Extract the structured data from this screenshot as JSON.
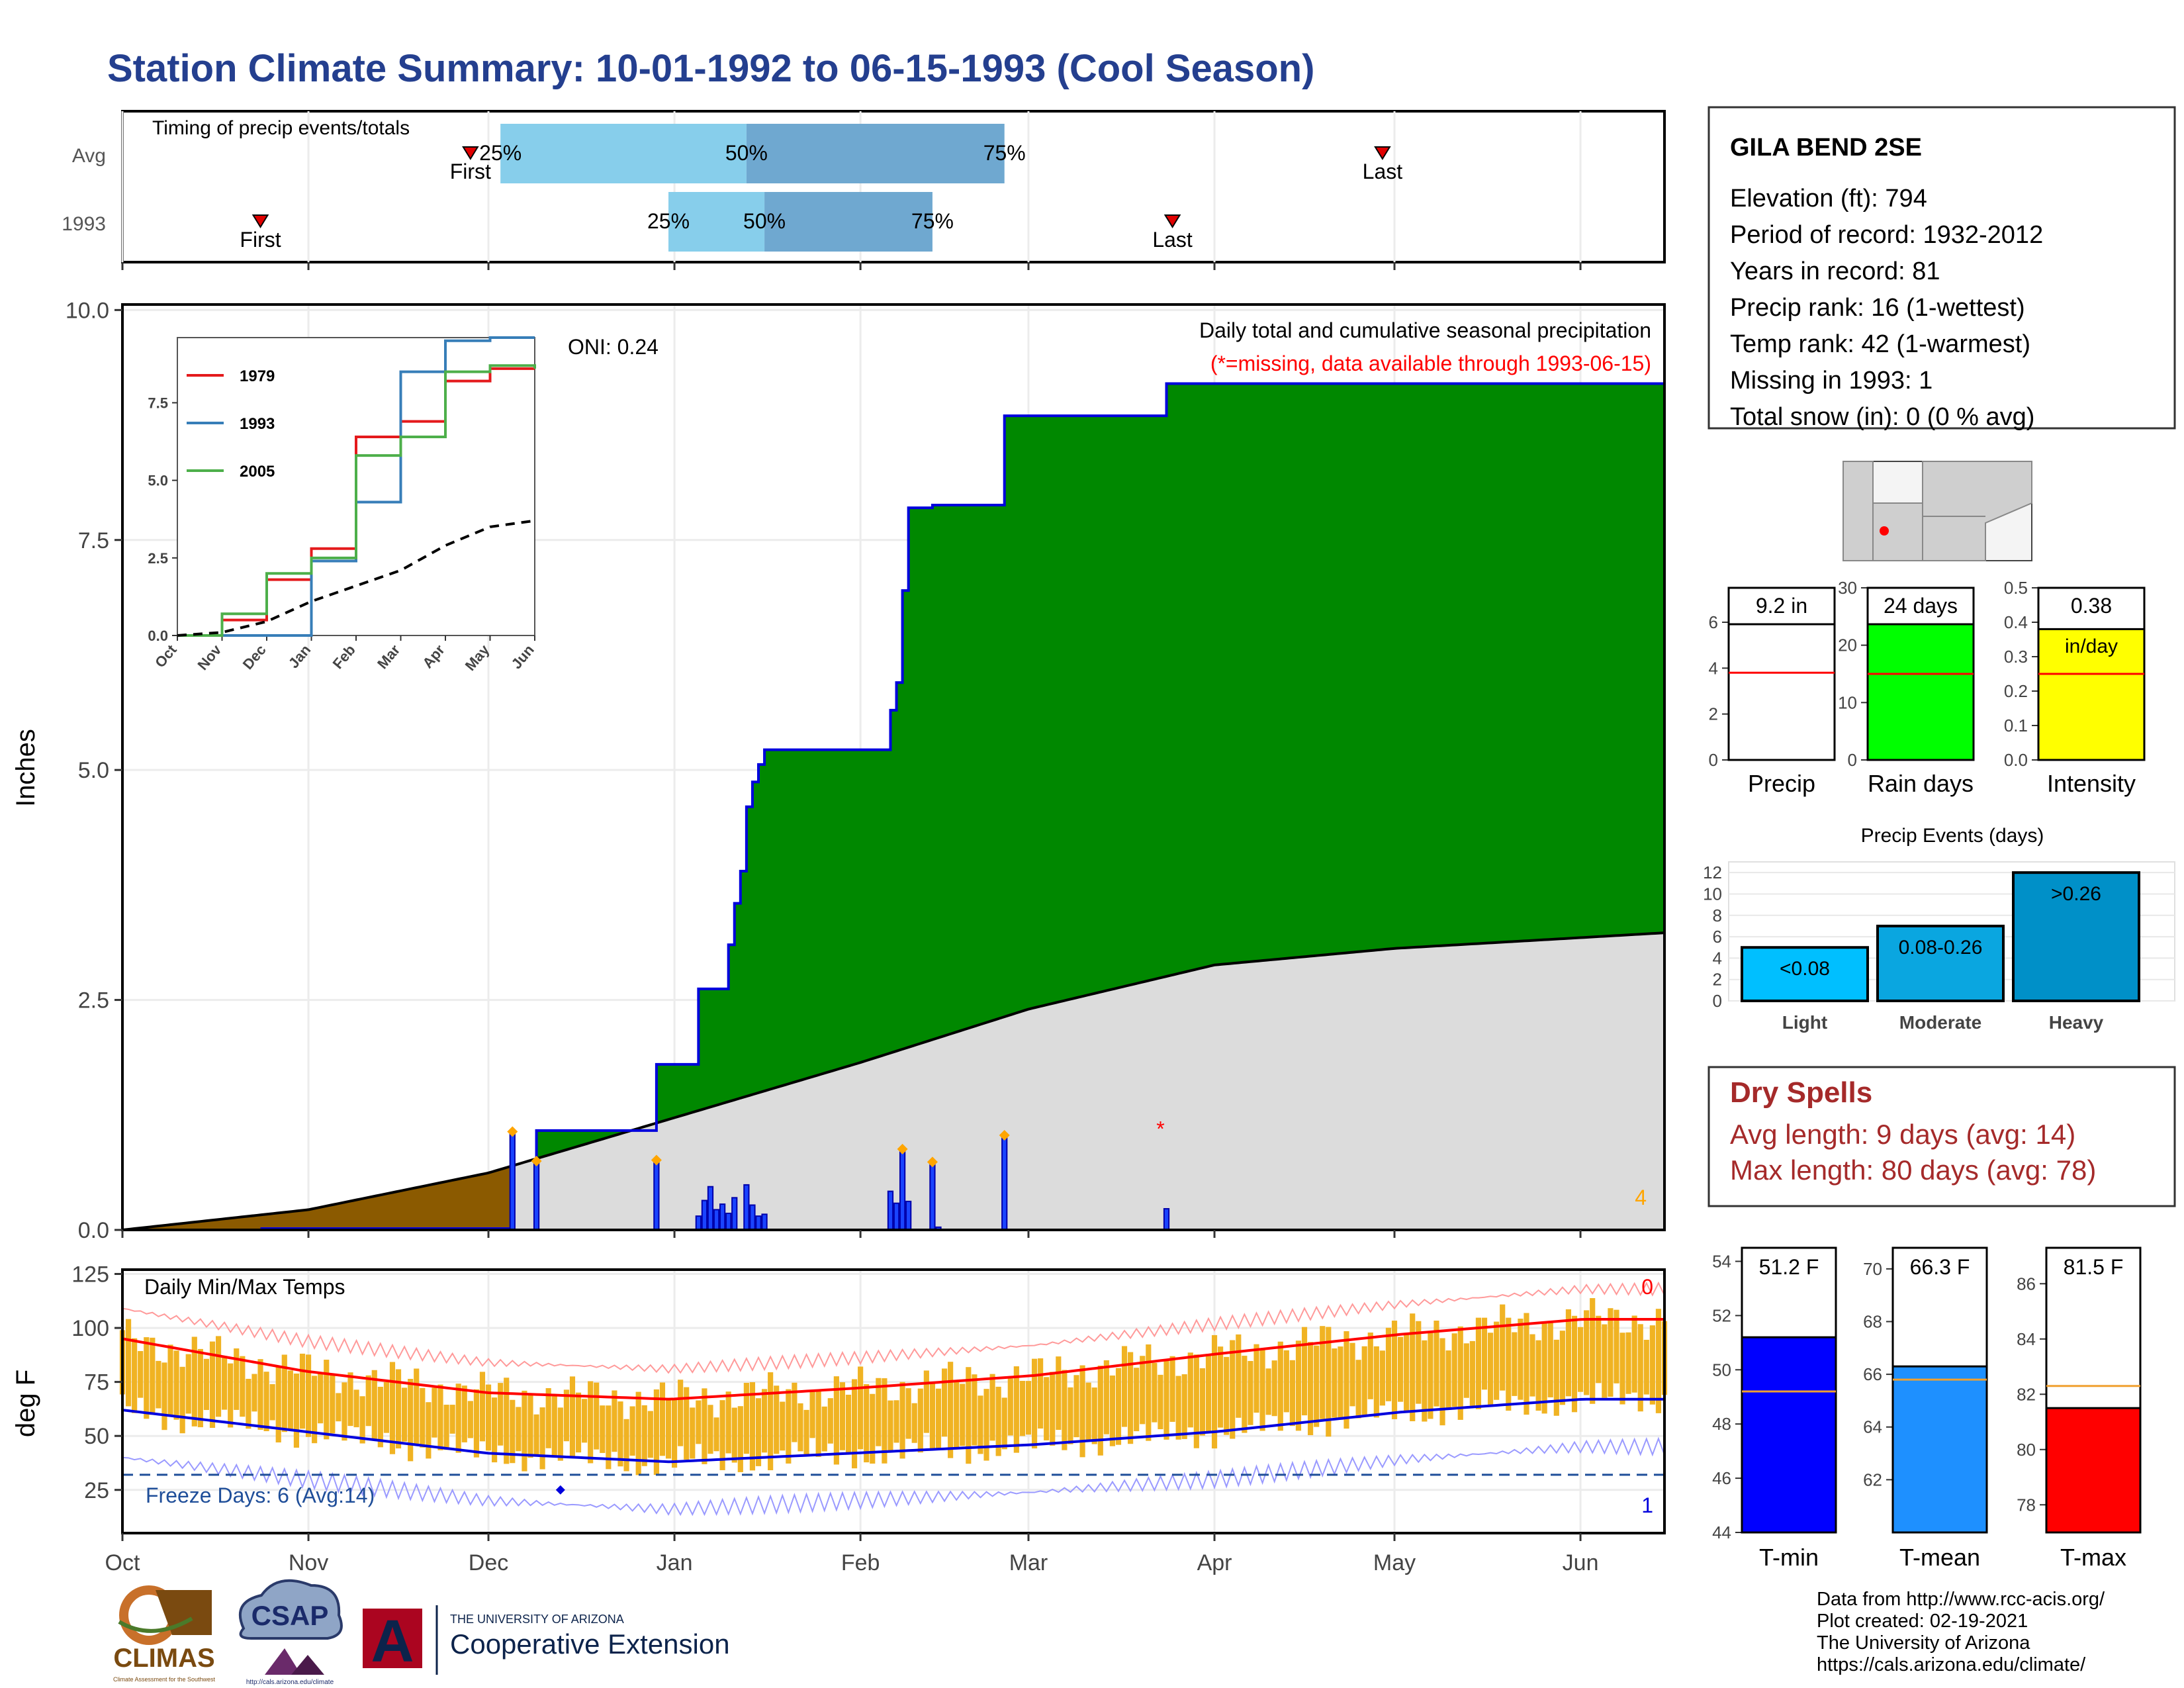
{
  "title": "Station Climate Summary: 10-01-1992 to 06-15-1993 (Cool Season)",
  "timing": {
    "label": "Timing of precip events/totals",
    "rows": [
      {
        "name": "Avg",
        "first": "1992-11-28",
        "last": "1993-04-29",
        "p25": "1992-12-03",
        "p50": "1993-01-13",
        "p75": "1993-02-25"
      },
      {
        "name": "1993",
        "first": "1992-10-24",
        "last": "1993-03-25",
        "p25": "1992-12-31",
        "p50": "1993-01-16",
        "p75": "1993-02-13"
      }
    ],
    "first_label": "First",
    "last_label": "Last",
    "p25_label": "25%",
    "p50_label": "50%",
    "p75_label": "75%",
    "colors": {
      "light": "#87ceeb",
      "dark": "#6fa8d0",
      "marker": "#e00000"
    }
  },
  "precip_panel": {
    "ylabel": "Inches",
    "yticks": [
      "0.0",
      "2.5",
      "5.0",
      "7.5",
      "10.0"
    ],
    "oni": "ONI: 0.24",
    "subtitle": "Daily total and cumulative seasonal precipitation",
    "missing_note": "(*=missing, data available through 1993-06-15)",
    "count_label": "4",
    "colors": {
      "cumulative_fill": "#008800",
      "cumulative_line": "#0000dd",
      "avg_fill": "#dcdcdc",
      "deficit_fill": "#8b5a00",
      "daily_bar": "#1a44ff",
      "marker": "#ffa500",
      "missing": "#ff0000"
    }
  },
  "inset": {
    "legend": [
      "1979",
      "1993",
      "2005"
    ],
    "legend_colors": [
      "#e41a1c",
      "#377eb8",
      "#4daf4a"
    ],
    "yticks": [
      "0.0",
      "2.5",
      "5.0",
      "7.5"
    ],
    "xticks": [
      "Oct",
      "Nov",
      "Dec",
      "Jan",
      "Feb",
      "Mar",
      "Apr",
      "May",
      "Jun"
    ]
  },
  "temp_panel": {
    "ylabel": "deg F",
    "label": "Daily Min/Max Temps",
    "yticks": [
      "25",
      "50",
      "75",
      "100",
      "125"
    ],
    "freeze": "Freeze Days: 6 (Avg:14)",
    "max_count": "0",
    "min_count": "1",
    "colors": {
      "bar": "#f0b323",
      "avg_max": "#ff0000",
      "avg_min": "#0000dd",
      "freeze": "#1f4e99"
    }
  },
  "xaxis": [
    "Oct",
    "Nov",
    "Dec",
    "Jan",
    "Feb",
    "Mar",
    "Apr",
    "May",
    "Jun"
  ],
  "station": {
    "name": "GILA BEND 2SE",
    "lines": [
      "Elevation (ft): 794",
      "Period of record: 1932-2012",
      "Years in record: 81",
      "Precip rank: 16 (1-wettest)",
      "Temp rank: 42 (1-warmest)",
      "Missing in 1993: 1",
      "Total snow (in): 0 (0 % avg)"
    ]
  },
  "summary_bars": [
    {
      "label": "Precip",
      "value_text": "9.2 in",
      "value": 9.2,
      "avg": 3.8,
      "ymax": 7.5,
      "yticks": [
        "0",
        "2",
        "4",
        "6"
      ],
      "color": "#ffffff"
    },
    {
      "label": "Rain days",
      "value_text": "24 days",
      "value": 24,
      "avg": 15,
      "ymax": 30,
      "yticks": [
        "0",
        "10",
        "20",
        "30"
      ],
      "color": "#00ff00"
    },
    {
      "label": "Intensity",
      "value_text": "0.38",
      "unit": "in/day",
      "value": 0.38,
      "avg": 0.25,
      "ymax": 0.5,
      "yticks": [
        "0.0",
        "0.1",
        "0.2",
        "0.3",
        "0.4",
        "0.5"
      ],
      "color": "#ffff00"
    }
  ],
  "events": {
    "title": "Precip Events (days)",
    "yticks": [
      "0",
      "2",
      "4",
      "6",
      "8",
      "10",
      "12"
    ],
    "categories": [
      "Light",
      "Moderate",
      "Heavy"
    ],
    "values": [
      5,
      7,
      12
    ],
    "labels": [
      "<0.08",
      "0.08-0.26",
      ">0.26"
    ],
    "colors": [
      "#00bfff",
      "#0aa6e0",
      "#0090c8"
    ]
  },
  "dry_spells": {
    "title": "Dry Spells",
    "avg": "Avg length: 9 days (avg: 14)",
    "max": "Max length: 80 days (avg: 78)",
    "color": "#a52a2a"
  },
  "temp_bars": [
    {
      "label": "T-min",
      "value_text": "51.2 F",
      "value": 51.2,
      "avg": 49.2,
      "ymin": 44,
      "ymax": 54.5,
      "yticks": [
        "44",
        "46",
        "48",
        "50",
        "52",
        "54"
      ],
      "color": "#0000ff"
    },
    {
      "label": "T-mean",
      "value_text": "66.3 F",
      "value": 66.3,
      "avg": 65.8,
      "ymin": 60,
      "ymax": 70.8,
      "yticks": [
        "62",
        "64",
        "66",
        "68",
        "70"
      ],
      "color": "#1e90ff"
    },
    {
      "label": "T-max",
      "value_text": "81.5 F",
      "value": 81.5,
      "avg": 82.3,
      "ymin": 77,
      "ymax": 87.3,
      "yticks": [
        "78",
        "80",
        "82",
        "84",
        "86"
      ],
      "color": "#ff0000"
    }
  ],
  "footer": [
    "Data from http://www.rcc-acis.org/",
    "Plot created: 02-19-2021",
    "The University of Arizona",
    "https://cals.arizona.edu/climate/"
  ],
  "logos": {
    "climas": "CLIMAS",
    "climas_small": "Climate Assessment for the Southwest",
    "csap": "CSAP",
    "csap_url": "http://cals.arizona.edu/climate",
    "ua_small": "THE UNIVERSITY OF ARIZONA",
    "ua_big": "Cooperative Extension",
    "ua_letter": "A"
  },
  "chart_data": [
    {
      "type": "area",
      "title": "Daily total and cumulative seasonal precipitation",
      "ylabel": "Inches",
      "ylim": [
        0,
        10
      ],
      "series": [
        {
          "name": "",
          "x": [
            "1992-10-01",
            "1992-12-05",
            "1992-12-09",
            "1992-12-29",
            "1993-01-05",
            "1993-01-10",
            "1993-01-11",
            "1993-01-12",
            "1993-01-13",
            "1993-01-14",
            "1993-01-15",
            "1993-01-16",
            "1993-01-18",
            "1993-01-21",
            "1993-02-06",
            "1993-02-07",
            "1993-02-08",
            "1993-02-09",
            "1993-02-12",
            "1993-02-13",
            "1993-02-15",
            "1993-02-25",
            "1993-03-24",
            "1993-06-15"
          ],
          "values": [
            0,
            0,
            1.08,
            1.8,
            2.62,
            3.1,
            3.55,
            3.9,
            4.6,
            4.87,
            5.06,
            5.22,
            5.22,
            5.22,
            5.65,
            5.95,
            6.95,
            7.85,
            7.85,
            7.88,
            7.88,
            8.85,
            9.2,
            9.2
          ]
        },
        {
          "name": "",
          "x": [
            "1992-10-01",
            "1992-11-01",
            "1992-12-01",
            "1993-01-01",
            "1993-02-01",
            "1993-03-01",
            "1993-04-01",
            "1993-05-01",
            "1993-06-15"
          ],
          "values": [
            0,
            0.22,
            0.62,
            1.22,
            1.82,
            2.4,
            2.88,
            3.06,
            3.23
          ]
        }
      ]
    },
    {
      "type": "bar",
      "title": "",
      "x": [
        "1992-12-05",
        "1992-12-09",
        "1992-12-29",
        "1993-01-05",
        "1993-01-06",
        "1993-01-07",
        "1993-01-08",
        "1993-01-09",
        "1993-01-10",
        "1993-01-11",
        "1993-01-13",
        "1993-01-14",
        "1993-01-15",
        "1993-01-16",
        "1993-02-06",
        "1993-02-07",
        "1993-02-08",
        "1993-02-09",
        "1993-02-13",
        "1993-02-14",
        "1993-02-25",
        "1993-03-24"
      ],
      "values": [
        1.04,
        0.72,
        0.73,
        0.15,
        0.32,
        0.47,
        0.22,
        0.28,
        0.18,
        0.35,
        0.49,
        0.27,
        0.15,
        0.17,
        0.42,
        0.29,
        0.85,
        0.31,
        0.71,
        0.03,
        1.0,
        0.23
      ],
      "ylim": [
        0,
        10
      ]
    },
    {
      "type": "line",
      "title": "",
      "x": [
        "Oct",
        "Nov",
        "Dec",
        "Jan",
        "Feb",
        "Mar",
        "Apr",
        "May",
        "Jun"
      ],
      "xlabel": "",
      "ylabel": "",
      "ylim": [
        0,
        9.6
      ],
      "series": [
        {
          "name": "1979",
          "values": [
            0,
            0.5,
            1.8,
            2.8,
            6.4,
            6.9,
            8.2,
            8.6,
            8.6
          ]
        },
        {
          "name": "1993",
          "values": [
            0,
            0,
            0,
            2.4,
            4.3,
            8.5,
            9.5,
            9.6,
            9.6
          ]
        },
        {
          "name": "2005",
          "values": [
            0,
            0.7,
            2.0,
            2.5,
            5.8,
            6.4,
            8.5,
            8.7,
            8.6
          ]
        },
        {
          "name": "",
          "values": [
            0,
            0.1,
            0.45,
            1.1,
            1.6,
            2.1,
            2.9,
            3.5,
            3.7
          ]
        }
      ]
    },
    {
      "type": "bar",
      "title": "Daily Min/Max Temps",
      "ylabel": "deg F",
      "ylim": [
        5,
        125
      ],
      "categories": [
        "Oct",
        "Nov",
        "Dec",
        "Jan",
        "Feb",
        "Mar",
        "Apr",
        "May",
        "Jun"
      ],
      "series": [
        {
          "name": "",
          "values": [
            95,
            80,
            70,
            67,
            72,
            78,
            88,
            97,
            104
          ]
        },
        {
          "name": "",
          "values": [
            62,
            52,
            42,
            38,
            42,
            46,
            52,
            61,
            67
          ]
        }
      ]
    },
    {
      "type": "bar",
      "title": "Precip Events (days)",
      "categories": [
        "Light",
        "Moderate",
        "Heavy"
      ],
      "values": [
        5,
        7,
        12
      ],
      "ylim": [
        0,
        13
      ]
    },
    {
      "type": "bar",
      "title": "",
      "categories": [
        "Precip",
        "Rain days",
        "Intensity"
      ],
      "series": [
        {
          "name": "",
          "values": [
            9.2,
            24,
            0.38
          ]
        },
        {
          "name": "",
          "values": [
            3.8,
            15,
            0.25
          ]
        }
      ]
    },
    {
      "type": "bar",
      "title": "",
      "categories": [
        "T-min",
        "T-mean",
        "T-max"
      ],
      "series": [
        {
          "name": "",
          "values": [
            51.2,
            66.3,
            81.5
          ]
        },
        {
          "name": "",
          "values": [
            49.2,
            65.8,
            82.3
          ]
        }
      ]
    }
  ]
}
